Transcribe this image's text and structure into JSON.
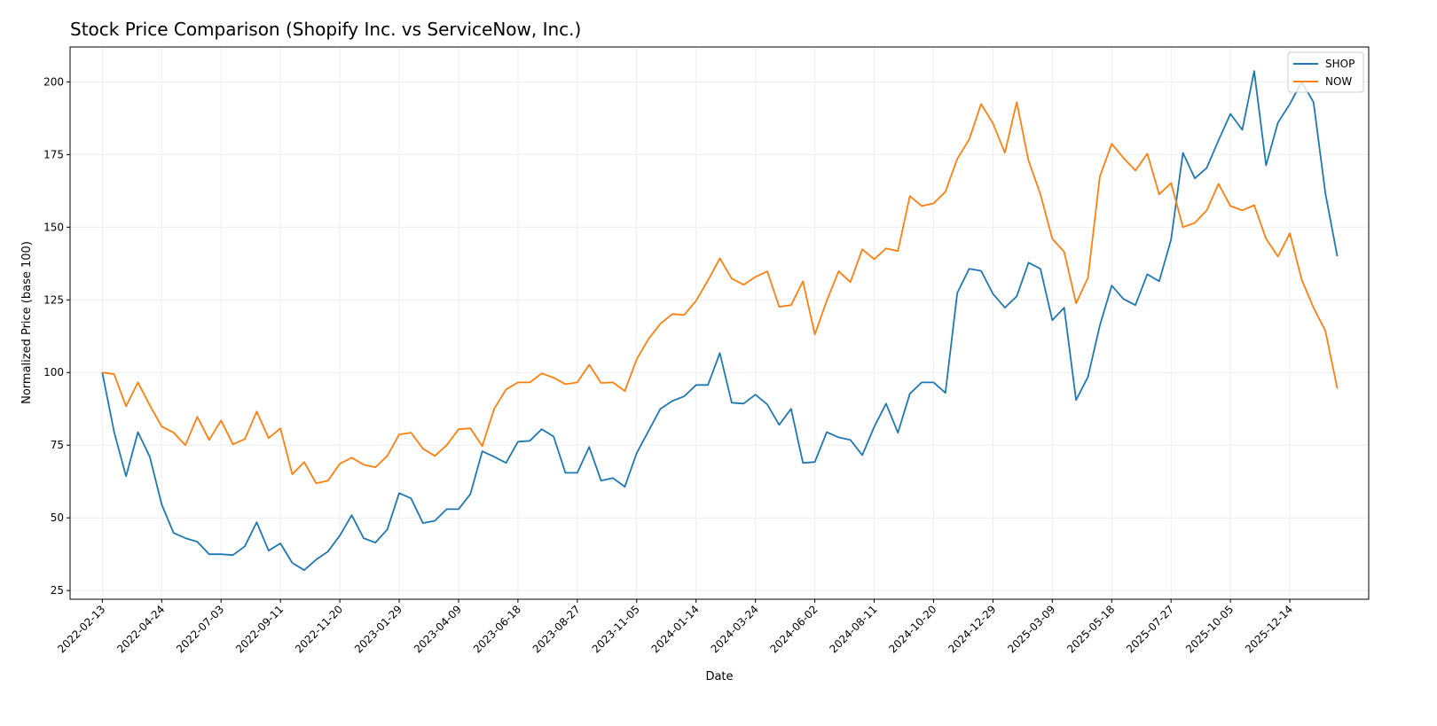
{
  "chart_data": {
    "type": "line",
    "title": "Stock Price Comparison (Shopify Inc. vs ServiceNow, Inc.)",
    "xlabel": "Date",
    "ylabel": "Normalized Price (base 100)",
    "ylim": [
      22,
      212
    ],
    "xlim": [
      "2022-01-06",
      "2026-03-17"
    ],
    "grid": true,
    "legend": "top-right",
    "x_ticks": [
      "2022-02-13",
      "2022-04-24",
      "2022-07-03",
      "2022-09-11",
      "2022-11-20",
      "2023-01-29",
      "2023-04-09",
      "2023-06-18",
      "2023-08-27",
      "2023-11-05",
      "2024-01-14",
      "2024-03-24",
      "2024-06-02",
      "2024-08-11",
      "2024-10-20",
      "2024-12-29",
      "2025-03-09",
      "2025-05-18",
      "2025-07-27",
      "2025-10-05",
      "2025-12-14"
    ],
    "y_ticks": [
      25,
      50,
      75,
      100,
      125,
      150,
      175,
      200
    ],
    "x": [
      "2022-02-13",
      "2022-02-27",
      "2022-03-13",
      "2022-03-27",
      "2022-04-10",
      "2022-04-24",
      "2022-05-08",
      "2022-05-22",
      "2022-06-05",
      "2022-06-19",
      "2022-07-03",
      "2022-07-17",
      "2022-07-31",
      "2022-08-14",
      "2022-08-28",
      "2022-09-11",
      "2022-09-25",
      "2022-10-09",
      "2022-10-23",
      "2022-11-06",
      "2022-11-20",
      "2022-12-04",
      "2022-12-18",
      "2023-01-01",
      "2023-01-15",
      "2023-01-29",
      "2023-02-12",
      "2023-02-26",
      "2023-03-12",
      "2023-03-26",
      "2023-04-09",
      "2023-04-23",
      "2023-05-07",
      "2023-05-21",
      "2023-06-04",
      "2023-06-18",
      "2023-07-02",
      "2023-07-16",
      "2023-07-30",
      "2023-08-13",
      "2023-08-27",
      "2023-09-10",
      "2023-09-24",
      "2023-10-08",
      "2023-10-22",
      "2023-11-05",
      "2023-11-19",
      "2023-12-03",
      "2023-12-17",
      "2023-12-31",
      "2024-01-14",
      "2024-01-28",
      "2024-02-11",
      "2024-02-25",
      "2024-03-10",
      "2024-03-24",
      "2024-04-07",
      "2024-04-21",
      "2024-05-05",
      "2024-05-19",
      "2024-06-02",
      "2024-06-16",
      "2024-06-30",
      "2024-07-14",
      "2024-07-28",
      "2024-08-11",
      "2024-08-25",
      "2024-09-08",
      "2024-09-22",
      "2024-10-06",
      "2024-10-20",
      "2024-11-03",
      "2024-11-17",
      "2024-12-01",
      "2024-12-15",
      "2024-12-29",
      "2025-01-12",
      "2025-01-26",
      "2025-02-09",
      "2025-02-23",
      "2025-03-09",
      "2025-03-23",
      "2025-04-06",
      "2025-04-20",
      "2025-05-04",
      "2025-05-18",
      "2025-06-01",
      "2025-06-15",
      "2025-06-29",
      "2025-07-13",
      "2025-07-27",
      "2025-08-10",
      "2025-08-24",
      "2025-09-07",
      "2025-09-21",
      "2025-10-05",
      "2025-10-19",
      "2025-11-02",
      "2025-11-16",
      "2025-11-30",
      "2025-12-14",
      "2025-12-28",
      "2026-01-11",
      "2026-01-25",
      "2026-02-08"
    ],
    "series": [
      {
        "name": "SHOP",
        "color": "#1f77b4",
        "values": [
          100,
          79.5,
          64.3,
          79.5,
          71,
          54.6,
          44.8,
          43,
          41.8,
          37.5,
          37.5,
          37.2,
          40.2,
          48.5,
          38.7,
          41.2,
          34.5,
          32,
          35.6,
          38.4,
          43.9,
          50.9,
          43,
          41.5,
          46,
          58.5,
          56.7,
          48.2,
          49,
          53,
          53,
          58.2,
          72.9,
          71,
          68.9,
          76.2,
          76.5,
          80.5,
          78,
          65.5,
          65.5,
          74.4,
          62.8,
          63.7,
          60.7,
          72.3,
          79.9,
          87.5,
          90.2,
          91.8,
          95.7,
          95.7,
          106.7,
          89.6,
          89.3,
          92.4,
          89,
          82,
          87.5,
          68.9,
          69.2,
          79.5,
          77.7,
          76.8,
          71.6,
          81.3,
          89.3,
          79.3,
          92.7,
          96.6,
          96.6,
          93,
          127.4,
          135.7,
          135,
          127.1,
          122.3,
          126.2,
          137.8,
          135.7,
          118,
          122.3,
          90.5,
          98.5,
          116.2,
          129.9,
          125.3,
          123.2,
          133.8,
          131.4,
          145.7,
          175.6,
          166.8,
          170.4,
          179.9,
          189,
          183.5,
          203.7,
          171.3,
          186,
          192.4,
          200,
          193,
          161.6,
          140
        ]
      },
      {
        "name": "NOW",
        "color": "#ff7f0e",
        "values": [
          100,
          99.4,
          88.4,
          96.6,
          88.7,
          81.4,
          79.3,
          75,
          84.8,
          76.8,
          83.5,
          75.3,
          77.1,
          86.6,
          77.4,
          80.8,
          65,
          69.2,
          61.9,
          62.8,
          68.6,
          70.7,
          68.3,
          67.4,
          71.3,
          78.7,
          79.3,
          73.8,
          71.3,
          75,
          80.5,
          80.8,
          74.7,
          87.5,
          94.2,
          96.6,
          96.6,
          99.7,
          98.2,
          96,
          96.6,
          102.7,
          96.4,
          96.6,
          93.6,
          104.6,
          111.6,
          116.8,
          120.1,
          119.8,
          124.7,
          131.7,
          139.3,
          132.3,
          130.2,
          132.9,
          134.8,
          122.6,
          123.2,
          131.4,
          113.1,
          124.7,
          134.8,
          131.1,
          142.4,
          139,
          142.7,
          141.8,
          160.7,
          157.3,
          158.2,
          162.2,
          173.5,
          180.2,
          192.4,
          185.7,
          175.6,
          193,
          172.9,
          161.3,
          146,
          141.5,
          123.8,
          132.6,
          167.4,
          178.7,
          173.8,
          169.5,
          175.3,
          161.3,
          165.2,
          150,
          151.5,
          155.8,
          164.9,
          157.3,
          155.8,
          157.6,
          146,
          139.9,
          147.9,
          131.9,
          122.3,
          114.3,
          94.5
        ]
      }
    ]
  }
}
